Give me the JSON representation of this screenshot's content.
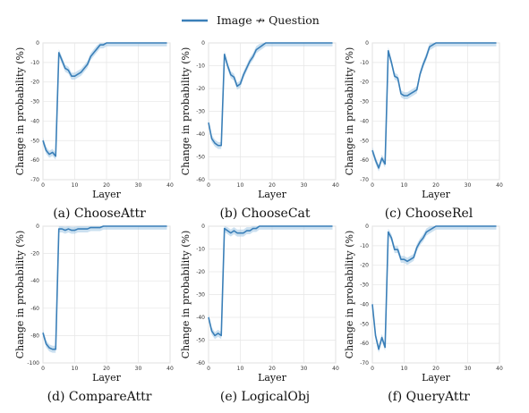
{
  "legend": {
    "label": "Image ↛ Question",
    "color": "#3a7fb8"
  },
  "line_color": "#3a7fb8",
  "band_color": "#a9cbe6",
  "chart_data": [
    {
      "type": "line",
      "caption": "(a) ChooseAttr",
      "xlabel": "Layer",
      "ylabel": "Change in probability (%)",
      "xlim": [
        0,
        40
      ],
      "ylim": [
        -70,
        0
      ],
      "xticks": [
        0,
        10,
        20,
        30,
        40
      ],
      "yticks": [
        0,
        -10,
        -20,
        -30,
        -40,
        -50,
        -60,
        -70
      ],
      "grid": true,
      "series": [
        {
          "name": "Image ↛ Question",
          "x": [
            0,
            1,
            2,
            3,
            4,
            5,
            6,
            7,
            8,
            9,
            10,
            11,
            12,
            13,
            14,
            15,
            16,
            17,
            18,
            19,
            20,
            21,
            22,
            23,
            24,
            25,
            26,
            27,
            28,
            29,
            30,
            31,
            32,
            33,
            34,
            35,
            36,
            37,
            38,
            39
          ],
          "y": [
            -50,
            -55,
            -57,
            -56,
            -58,
            -5,
            -9,
            -13,
            -14,
            -17,
            -17,
            -16,
            -15,
            -13,
            -11,
            -7,
            -5,
            -3,
            -1,
            -1,
            0,
            0,
            0,
            0,
            0,
            0,
            0,
            0,
            0,
            0,
            0,
            0,
            0,
            0,
            0,
            0,
            0,
            0,
            0,
            0
          ]
        }
      ]
    },
    {
      "type": "line",
      "caption": "(b) ChooseCat",
      "xlabel": "Layer",
      "ylabel": "Change in probability (%)",
      "xlim": [
        0,
        40
      ],
      "ylim": [
        -60,
        0
      ],
      "xticks": [
        0,
        10,
        20,
        30,
        40
      ],
      "yticks": [
        0,
        -10,
        -20,
        -30,
        -40,
        -50,
        -60
      ],
      "grid": true,
      "series": [
        {
          "name": "Image ↛ Question",
          "x": [
            0,
            1,
            2,
            3,
            4,
            5,
            6,
            7,
            8,
            9,
            10,
            11,
            12,
            13,
            14,
            15,
            16,
            17,
            18,
            19,
            20,
            21,
            22,
            23,
            24,
            25,
            26,
            27,
            28,
            29,
            30,
            31,
            32,
            33,
            34,
            35,
            36,
            37,
            38,
            39
          ],
          "y": [
            -35,
            -42,
            -44,
            -45,
            -45,
            -5,
            -10,
            -14,
            -15,
            -19,
            -18,
            -14,
            -11,
            -8,
            -6,
            -3,
            -2,
            -1,
            0,
            0,
            0,
            0,
            0,
            0,
            0,
            0,
            0,
            0,
            0,
            0,
            0,
            0,
            0,
            0,
            0,
            0,
            0,
            0,
            0,
            0
          ]
        }
      ]
    },
    {
      "type": "line",
      "caption": "(c) ChooseRel",
      "xlabel": "Layer",
      "ylabel": "Change in probability (%)",
      "xlim": [
        0,
        40
      ],
      "ylim": [
        -70,
        0
      ],
      "xticks": [
        0,
        10,
        20,
        30,
        40
      ],
      "yticks": [
        0,
        -10,
        -20,
        -30,
        -40,
        -50,
        -60,
        -70
      ],
      "grid": true,
      "series": [
        {
          "name": "Image ↛ Question",
          "x": [
            0,
            1,
            2,
            3,
            4,
            5,
            6,
            7,
            8,
            9,
            10,
            11,
            12,
            13,
            14,
            15,
            16,
            17,
            18,
            19,
            20,
            21,
            22,
            23,
            24,
            25,
            26,
            27,
            28,
            29,
            30,
            31,
            32,
            33,
            34,
            35,
            36,
            37,
            38,
            39
          ],
          "y": [
            -55,
            -60,
            -64,
            -59,
            -62,
            -4,
            -10,
            -17,
            -18,
            -26,
            -27,
            -27,
            -26,
            -25,
            -24,
            -16,
            -11,
            -7,
            -2,
            -1,
            0,
            0,
            0,
            0,
            0,
            0,
            0,
            0,
            0,
            0,
            0,
            0,
            0,
            0,
            0,
            0,
            0,
            0,
            0,
            0
          ]
        }
      ]
    },
    {
      "type": "line",
      "caption": "(d) CompareAttr",
      "xlabel": "Layer",
      "ylabel": "Change in probability (%)",
      "xlim": [
        0,
        40
      ],
      "ylim": [
        -100,
        0
      ],
      "xticks": [
        0,
        10,
        20,
        30,
        40
      ],
      "yticks": [
        0,
        -20,
        -40,
        -60,
        -80,
        -100
      ],
      "grid": true,
      "series": [
        {
          "name": "Image ↛ Question",
          "x": [
            0,
            1,
            2,
            3,
            4,
            5,
            6,
            7,
            8,
            9,
            10,
            11,
            12,
            13,
            14,
            15,
            16,
            17,
            18,
            19,
            20,
            21,
            22,
            23,
            24,
            25,
            26,
            27,
            28,
            29,
            30,
            31,
            32,
            33,
            34,
            35,
            36,
            37,
            38,
            39
          ],
          "y": [
            -78,
            -86,
            -89,
            -90,
            -90,
            -2,
            -2,
            -3,
            -2,
            -3,
            -3,
            -2,
            -2,
            -2,
            -2,
            -1,
            -1,
            -1,
            -1,
            0,
            0,
            0,
            0,
            0,
            0,
            0,
            0,
            0,
            0,
            0,
            0,
            0,
            0,
            0,
            0,
            0,
            0,
            0,
            0,
            0
          ]
        }
      ]
    },
    {
      "type": "line",
      "caption": "(e) LogicalObj",
      "xlabel": "Layer",
      "ylabel": "Change in probability (%)",
      "xlim": [
        0,
        40
      ],
      "ylim": [
        -60,
        0
      ],
      "xticks": [
        0,
        10,
        20,
        30,
        40
      ],
      "yticks": [
        0,
        -10,
        -20,
        -30,
        -40,
        -50,
        -60
      ],
      "grid": true,
      "series": [
        {
          "name": "Image ↛ Question",
          "x": [
            0,
            1,
            2,
            3,
            4,
            5,
            6,
            7,
            8,
            9,
            10,
            11,
            12,
            13,
            14,
            15,
            16,
            17,
            18,
            19,
            20,
            21,
            22,
            23,
            24,
            25,
            26,
            27,
            28,
            29,
            30,
            31,
            32,
            33,
            34,
            35,
            36,
            37,
            38,
            39
          ],
          "y": [
            -40,
            -46,
            -48,
            -47,
            -48,
            -1,
            -2,
            -3,
            -2,
            -3,
            -3,
            -3,
            -2,
            -2,
            -1,
            -1,
            0,
            0,
            0,
            0,
            0,
            0,
            0,
            0,
            0,
            0,
            0,
            0,
            0,
            0,
            0,
            0,
            0,
            0,
            0,
            0,
            0,
            0,
            0,
            0
          ]
        }
      ]
    },
    {
      "type": "line",
      "caption": "(f) QueryAttr",
      "xlabel": "Layer",
      "ylabel": "Change in probability (%)",
      "xlim": [
        0,
        40
      ],
      "ylim": [
        -70,
        0
      ],
      "xticks": [
        0,
        10,
        20,
        30,
        40
      ],
      "yticks": [
        0,
        -10,
        -20,
        -30,
        -40,
        -50,
        -60,
        -70
      ],
      "grid": true,
      "series": [
        {
          "name": "Image ↛ Question",
          "x": [
            0,
            1,
            2,
            3,
            4,
            5,
            6,
            7,
            8,
            9,
            10,
            11,
            12,
            13,
            14,
            15,
            16,
            17,
            18,
            19,
            20,
            21,
            22,
            23,
            24,
            25,
            26,
            27,
            28,
            29,
            30,
            31,
            32,
            33,
            34,
            35,
            36,
            37,
            38,
            39
          ],
          "y": [
            -40,
            -56,
            -63,
            -57,
            -62,
            -3,
            -6,
            -12,
            -12,
            -17,
            -17,
            -18,
            -17,
            -16,
            -11,
            -8,
            -6,
            -3,
            -2,
            -1,
            0,
            0,
            0,
            0,
            0,
            0,
            0,
            0,
            0,
            0,
            0,
            0,
            0,
            0,
            0,
            0,
            0,
            0,
            0,
            0
          ]
        }
      ]
    }
  ]
}
